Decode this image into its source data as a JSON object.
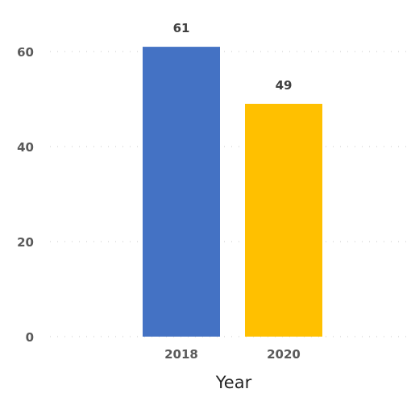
{
  "chart_data": {
    "type": "bar",
    "categories": [
      "2018",
      "2020"
    ],
    "values": [
      61,
      49
    ],
    "colors": [
      "#4472c4",
      "#ffc000"
    ],
    "title": "",
    "xlabel": "Year",
    "ylabel": "",
    "ylim": [
      0,
      60
    ],
    "yticks": [
      0,
      20,
      40,
      60
    ],
    "grid": true,
    "data_labels": true
  }
}
